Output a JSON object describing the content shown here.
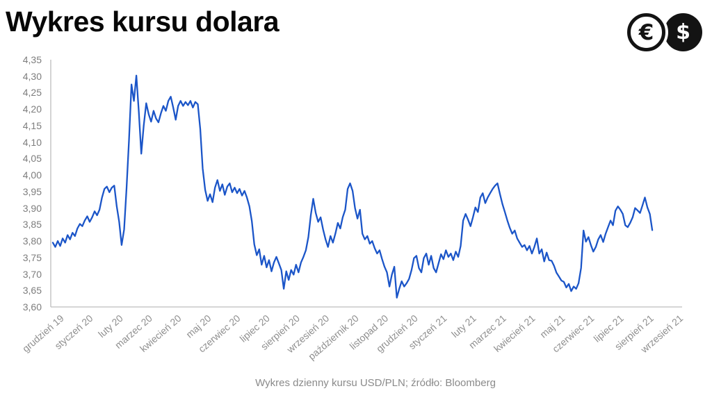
{
  "header": {
    "title": "Wykres kursu dolara",
    "euro_icon_symbol": "€",
    "dollar_icon_symbol": "$"
  },
  "chart_data": {
    "type": "line",
    "title": "Wykres kursu dolara",
    "xlabel": "",
    "ylabel": "",
    "ylim": [
      3.6,
      4.35
    ],
    "y_tick_step": 0.05,
    "y_tick_labels": [
      "4,35",
      "4,30",
      "4,25",
      "4,20",
      "4,15",
      "4,10",
      "4,05",
      "4,00",
      "3,95",
      "3,90",
      "3,85",
      "3,80",
      "3,75",
      "3,70",
      "3,65",
      "3,60"
    ],
    "x_labels": [
      "grudzień 19",
      "styczeń 20",
      "luty 20",
      "marzec 20",
      "kwiecień 20",
      "maj 20",
      "czerwiec 20",
      "lipiec 20",
      "sierpień 20",
      "wrzesień 20",
      "październik 20",
      "listopad 20",
      "grudzień 20",
      "styczeń 21",
      "luty 21",
      "marzec 21",
      "kwiecień 21",
      "maj 21",
      "czerwiec 21",
      "lipiec 21",
      "sierpień 21",
      "wrzesień 21"
    ],
    "grid": "off",
    "legend": "none",
    "axis_color": "#bdbdbd",
    "y_label_color": "#7d7d7d",
    "x_label_color": "#8e8e8e",
    "series": [
      {
        "name": "USD/PLN",
        "color": "#1b55c8",
        "points_per_month": 12,
        "values": [
          3.795,
          3.782,
          3.8,
          3.785,
          3.808,
          3.795,
          3.818,
          3.805,
          3.825,
          3.815,
          3.838,
          3.852,
          3.845,
          3.862,
          3.875,
          3.858,
          3.872,
          3.89,
          3.878,
          3.895,
          3.932,
          3.958,
          3.965,
          3.948,
          3.962,
          3.968,
          3.905,
          3.858,
          3.788,
          3.835,
          3.96,
          4.105,
          4.275,
          4.225,
          4.302,
          4.19,
          4.065,
          4.15,
          4.218,
          4.185,
          4.162,
          4.195,
          4.172,
          4.16,
          4.188,
          4.21,
          4.195,
          4.225,
          4.238,
          4.205,
          4.168,
          4.21,
          4.225,
          4.21,
          4.222,
          4.212,
          4.225,
          4.205,
          4.222,
          4.215,
          4.14,
          4.02,
          3.955,
          3.922,
          3.942,
          3.918,
          3.962,
          3.985,
          3.952,
          3.972,
          3.94,
          3.965,
          3.975,
          3.948,
          3.962,
          3.945,
          3.958,
          3.938,
          3.952,
          3.932,
          3.905,
          3.86,
          3.79,
          3.757,
          3.775,
          3.728,
          3.755,
          3.72,
          3.742,
          3.708,
          3.735,
          3.752,
          3.732,
          3.712,
          3.655,
          3.708,
          3.682,
          3.712,
          3.698,
          3.728,
          3.705,
          3.735,
          3.752,
          3.772,
          3.812,
          3.878,
          3.928,
          3.885,
          3.858,
          3.872,
          3.835,
          3.805,
          3.782,
          3.815,
          3.795,
          3.822,
          3.855,
          3.838,
          3.872,
          3.895,
          3.958,
          3.975,
          3.952,
          3.9,
          3.868,
          3.895,
          3.822,
          3.805,
          3.815,
          3.792,
          3.8,
          3.778,
          3.762,
          3.772,
          3.745,
          3.722,
          3.705,
          3.662,
          3.698,
          3.722,
          3.628,
          3.655,
          3.678,
          3.662,
          3.672,
          3.685,
          3.712,
          3.748,
          3.755,
          3.718,
          3.705,
          3.748,
          3.762,
          3.728,
          3.755,
          3.718,
          3.705,
          3.732,
          3.76,
          3.745,
          3.772,
          3.752,
          3.762,
          3.742,
          3.768,
          3.752,
          3.785,
          3.862,
          3.882,
          3.865,
          3.845,
          3.872,
          3.902,
          3.888,
          3.932,
          3.945,
          3.915,
          3.932,
          3.945,
          3.958,
          3.968,
          3.975,
          3.942,
          3.912,
          3.888,
          3.862,
          3.84,
          3.822,
          3.832,
          3.808,
          3.795,
          3.782,
          3.788,
          3.772,
          3.785,
          3.762,
          3.782,
          3.808,
          3.762,
          3.775,
          3.738,
          3.765,
          3.742,
          3.74,
          3.725,
          3.704,
          3.692,
          3.68,
          3.676,
          3.659,
          3.67,
          3.648,
          3.662,
          3.655,
          3.672,
          3.718,
          3.832,
          3.798,
          3.812,
          3.788,
          3.768,
          3.782,
          3.805,
          3.818,
          3.797,
          3.822,
          3.842,
          3.862,
          3.848,
          3.892,
          3.905,
          3.895,
          3.882,
          3.848,
          3.842,
          3.855,
          3.872,
          3.9,
          3.893,
          3.885,
          3.908,
          3.932,
          3.902,
          3.882,
          3.833
        ]
      }
    ]
  },
  "footer": {
    "caption": "Wykres dzienny kursu USD/PLN; źródło: Bloomberg"
  }
}
